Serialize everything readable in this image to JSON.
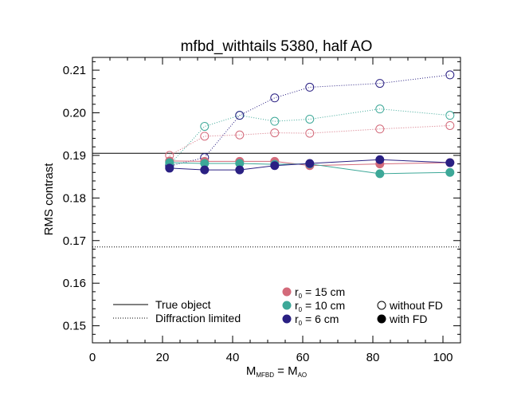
{
  "chart_data": {
    "type": "line",
    "title": "mfbd_withtails 5380, half AO",
    "xlabel": {
      "main": "M",
      "sub1": "MFBD",
      "mid": " = M",
      "sub2": "AO"
    },
    "ylabel": "RMS contrast",
    "xlim": [
      0,
      105
    ],
    "ylim": [
      0.146,
      0.213
    ],
    "xticks": [
      0,
      20,
      40,
      60,
      80,
      100
    ],
    "xtick_labels": [
      "0",
      "20",
      "40",
      "60",
      "80",
      "100"
    ],
    "yticks": [
      0.15,
      0.16,
      0.17,
      0.18,
      0.19,
      0.2,
      0.21
    ],
    "ytick_labels": [
      "0.15",
      "0.16",
      "0.17",
      "0.18",
      "0.19",
      "0.20",
      "0.21"
    ],
    "x": [
      22,
      32,
      42,
      52,
      62,
      82,
      102
    ],
    "reference_lines": [
      {
        "name": "True object",
        "y": 0.1905,
        "style": "solid"
      },
      {
        "name": "Diffraction limited",
        "y": 0.1685,
        "style": "dotted"
      }
    ],
    "series": [
      {
        "r0": "15 cm",
        "fd": "without FD",
        "color": "#d36a7a",
        "values": [
          0.19,
          0.1945,
          0.1948,
          0.1953,
          0.1952,
          0.1962,
          0.197
        ]
      },
      {
        "r0": "10 cm",
        "fd": "without FD",
        "color": "#3da898",
        "values": [
          0.1878,
          0.1968,
          0.1994,
          0.198,
          0.1985,
          0.2009,
          0.1994
        ]
      },
      {
        "r0": "6 cm",
        "fd": "without FD",
        "color": "#2a2083",
        "values": [
          0.1875,
          0.1895,
          0.1994,
          0.2035,
          0.206,
          0.2069,
          0.2089
        ]
      },
      {
        "r0": "15 cm",
        "fd": "with FD",
        "color": "#d36a7a",
        "values": [
          0.1887,
          0.1886,
          0.1886,
          0.1886,
          0.1876,
          0.188,
          0.1883
        ]
      },
      {
        "r0": "10 cm",
        "fd": "with FD",
        "color": "#3da898",
        "values": [
          0.1883,
          0.1881,
          0.1881,
          0.1879,
          0.188,
          0.1857,
          0.186
        ]
      },
      {
        "r0": "6 cm",
        "fd": "with FD",
        "color": "#2a2083",
        "values": [
          0.187,
          0.1866,
          0.1866,
          0.1876,
          0.1881,
          0.189,
          0.1883
        ]
      }
    ],
    "legend": {
      "lines": [
        {
          "label": "True object",
          "style": "solid"
        },
        {
          "label": "Diffraction limited",
          "style": "dotted"
        }
      ],
      "colors": [
        {
          "label_prefix": "r",
          "label_sub": "0",
          "label_rest": " = 15 cm",
          "color": "#d36a7a"
        },
        {
          "label_prefix": "r",
          "label_sub": "0",
          "label_rest": " = 10 cm",
          "color": "#3da898"
        },
        {
          "label_prefix": "r",
          "label_sub": "0",
          "label_rest": " = 6 cm",
          "color": "#2a2083"
        }
      ],
      "markers": [
        {
          "label": "without FD",
          "filled": false
        },
        {
          "label": "with FD",
          "filled": true
        }
      ]
    }
  }
}
